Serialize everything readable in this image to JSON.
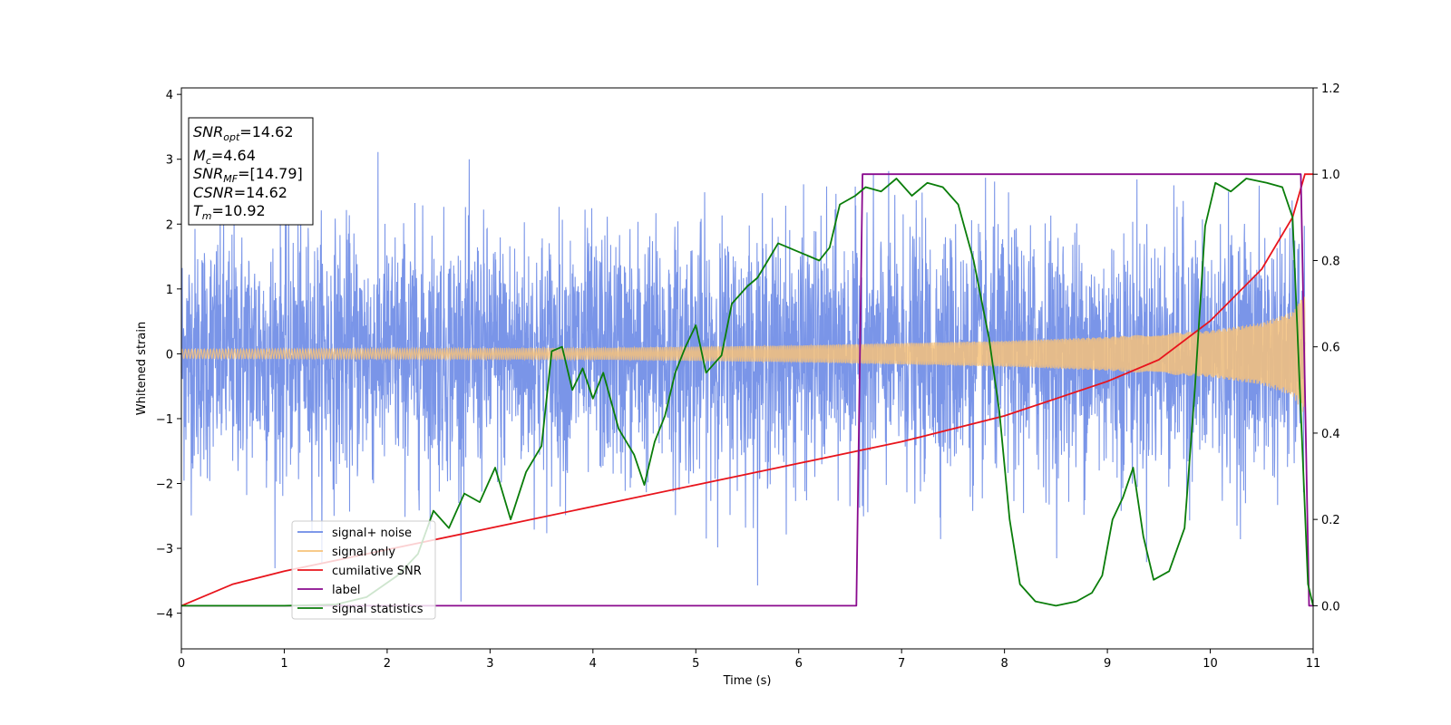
{
  "chart_data": {
    "type": "line",
    "xlabel": "Time (s)",
    "ylabel": "Whitened strain",
    "xlim": [
      0,
      11
    ],
    "ylim_left": [
      -4.55,
      4.1
    ],
    "ylim_right": [
      -0.1,
      1.2
    ],
    "x_ticks": [
      "0",
      "1",
      "2",
      "3",
      "4",
      "5",
      "6",
      "7",
      "8",
      "9",
      "10",
      "11"
    ],
    "y_left_ticks": [
      "−4",
      "−3",
      "−2",
      "−1",
      "0",
      "1",
      "2",
      "3",
      "4"
    ],
    "y_right_ticks": [
      "0.0",
      "0.2",
      "0.4",
      "0.6",
      "0.8",
      "1.0",
      "1.2"
    ],
    "info_box": {
      "snr_opt": {
        "sym": "SNR",
        "sub": "opt",
        "val": "=14.62"
      },
      "mc": {
        "sym": "M",
        "sub": "c",
        "val": "=4.64"
      },
      "snr_mf": {
        "sym": "SNR",
        "sub": "MF",
        "val": "=[14.79]"
      },
      "csnr": {
        "sym": "CSNR",
        "val": "=14.62"
      },
      "tm": {
        "sym": "T",
        "sub": "m",
        "val": "=10.92"
      }
    },
    "legend": {
      "location": "lower-left",
      "entries": [
        {
          "label": "signal+ noise",
          "color": "#6b8ae6"
        },
        {
          "label": "signal only",
          "color": "#f7c27a"
        },
        {
          "label": "cumilative SNR",
          "color": "#e8141c"
        },
        {
          "label": "label",
          "color": "#8a0a8e"
        },
        {
          "label": "signal statistics",
          "color": "#0a7d0a"
        }
      ]
    },
    "series": [
      {
        "name": "signal+ noise",
        "axis": "left",
        "description_only": false,
        "noise_sigma": 1.0,
        "x_range": [
          0,
          10.92
        ]
      },
      {
        "name": "signal only",
        "axis": "left",
        "envelope": [
          [
            0,
            0.07
          ],
          [
            2,
            0.08
          ],
          [
            4,
            0.09
          ],
          [
            6,
            0.13
          ],
          [
            8,
            0.2
          ],
          [
            9,
            0.26
          ],
          [
            10,
            0.36
          ],
          [
            10.5,
            0.48
          ],
          [
            10.8,
            0.65
          ],
          [
            10.92,
            0.95
          ]
        ]
      },
      {
        "name": "cumilative SNR",
        "axis": "right",
        "points": [
          [
            0,
            0.0
          ],
          [
            0.5,
            0.05
          ],
          [
            1,
            0.08
          ],
          [
            2,
            0.13
          ],
          [
            3,
            0.18
          ],
          [
            4,
            0.23
          ],
          [
            5,
            0.28
          ],
          [
            6,
            0.33
          ],
          [
            7,
            0.38
          ],
          [
            8,
            0.44
          ],
          [
            9,
            0.52
          ],
          [
            9.5,
            0.57
          ],
          [
            10,
            0.66
          ],
          [
            10.5,
            0.78
          ],
          [
            10.8,
            0.9
          ],
          [
            10.92,
            1.0
          ],
          [
            11,
            1.0
          ]
        ]
      },
      {
        "name": "label",
        "axis": "right",
        "points": [
          [
            0,
            0.0
          ],
          [
            6.56,
            0.0
          ],
          [
            6.62,
            1.0
          ],
          [
            10.88,
            1.0
          ],
          [
            10.96,
            0.0
          ],
          [
            11,
            0.0
          ]
        ]
      },
      {
        "name": "signal statistics",
        "axis": "right",
        "points": [
          [
            0,
            0.0
          ],
          [
            1.0,
            0.0
          ],
          [
            1.5,
            0.003
          ],
          [
            1.8,
            0.02
          ],
          [
            2.1,
            0.07
          ],
          [
            2.3,
            0.12
          ],
          [
            2.45,
            0.22
          ],
          [
            2.6,
            0.18
          ],
          [
            2.75,
            0.26
          ],
          [
            2.9,
            0.24
          ],
          [
            3.05,
            0.32
          ],
          [
            3.2,
            0.2
          ],
          [
            3.35,
            0.31
          ],
          [
            3.5,
            0.37
          ],
          [
            3.6,
            0.59
          ],
          [
            3.7,
            0.6
          ],
          [
            3.8,
            0.5
          ],
          [
            3.9,
            0.55
          ],
          [
            4.0,
            0.48
          ],
          [
            4.1,
            0.54
          ],
          [
            4.25,
            0.41
          ],
          [
            4.4,
            0.35
          ],
          [
            4.5,
            0.28
          ],
          [
            4.6,
            0.38
          ],
          [
            4.7,
            0.44
          ],
          [
            4.8,
            0.54
          ],
          [
            4.9,
            0.6
          ],
          [
            5.0,
            0.65
          ],
          [
            5.1,
            0.54
          ],
          [
            5.25,
            0.58
          ],
          [
            5.35,
            0.7
          ],
          [
            5.5,
            0.74
          ],
          [
            5.6,
            0.76
          ],
          [
            5.7,
            0.8
          ],
          [
            5.8,
            0.84
          ],
          [
            5.9,
            0.83
          ],
          [
            6.0,
            0.82
          ],
          [
            6.2,
            0.8
          ],
          [
            6.3,
            0.83
          ],
          [
            6.4,
            0.93
          ],
          [
            6.55,
            0.95
          ],
          [
            6.65,
            0.97
          ],
          [
            6.8,
            0.96
          ],
          [
            6.95,
            0.99
          ],
          [
            7.1,
            0.95
          ],
          [
            7.25,
            0.98
          ],
          [
            7.4,
            0.97
          ],
          [
            7.55,
            0.93
          ],
          [
            7.7,
            0.8
          ],
          [
            7.85,
            0.62
          ],
          [
            7.95,
            0.45
          ],
          [
            8.05,
            0.2
          ],
          [
            8.15,
            0.05
          ],
          [
            8.3,
            0.01
          ],
          [
            8.5,
            0.0
          ],
          [
            8.7,
            0.01
          ],
          [
            8.85,
            0.03
          ],
          [
            8.95,
            0.07
          ],
          [
            9.05,
            0.2
          ],
          [
            9.15,
            0.25
          ],
          [
            9.25,
            0.32
          ],
          [
            9.35,
            0.16
          ],
          [
            9.45,
            0.06
          ],
          [
            9.6,
            0.08
          ],
          [
            9.75,
            0.18
          ],
          [
            9.85,
            0.5
          ],
          [
            9.95,
            0.88
          ],
          [
            10.05,
            0.98
          ],
          [
            10.2,
            0.96
          ],
          [
            10.35,
            0.99
          ],
          [
            10.55,
            0.98
          ],
          [
            10.7,
            0.97
          ],
          [
            10.8,
            0.9
          ],
          [
            10.88,
            0.45
          ],
          [
            10.95,
            0.05
          ],
          [
            11,
            0.0
          ]
        ]
      }
    ]
  }
}
